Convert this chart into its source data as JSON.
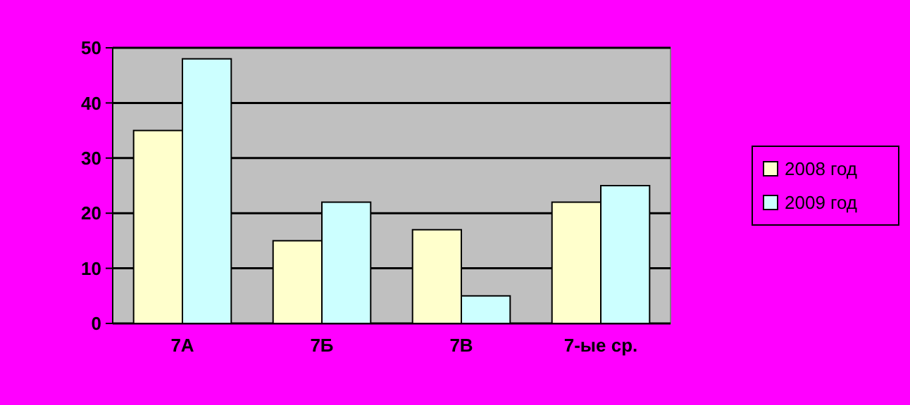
{
  "chart_data": {
    "type": "bar",
    "categories": [
      "7А",
      "7Б",
      "7В",
      "7-ые ср."
    ],
    "series": [
      {
        "name": "2008 год",
        "color": "#ffffcc",
        "values": [
          35,
          15,
          17,
          22
        ]
      },
      {
        "name": "2009 год",
        "color": "#ccffff",
        "values": [
          48,
          22,
          5,
          25
        ]
      }
    ],
    "ylim": [
      0,
      50
    ],
    "yticks": [
      0,
      10,
      20,
      30,
      40,
      50
    ],
    "grid": "y",
    "legend": "right"
  }
}
